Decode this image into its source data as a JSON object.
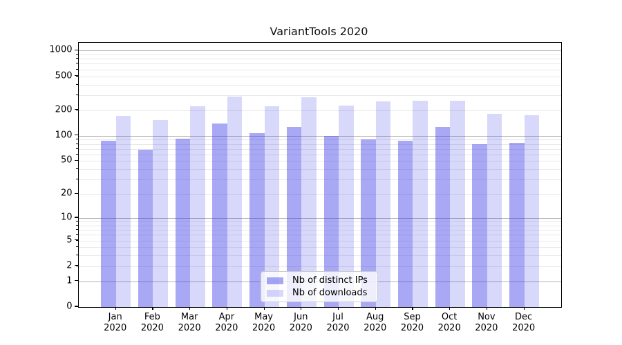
{
  "title": "VariantTools 2020",
  "colors": {
    "series_distinct_ips": "rgba(62,62,233,0.45)",
    "series_downloads": "rgba(62,62,233,0.20)",
    "grid_major": "#b0b0b0",
    "grid_minor": "#e8e8e8",
    "axis": "#000000",
    "legend_border": "#cccccc"
  },
  "legend": {
    "items": [
      {
        "label": "Nb of distinct IPs",
        "color": "rgba(62,62,233,0.45)"
      },
      {
        "label": "Nb of downloads",
        "color": "rgba(62,62,233,0.20)"
      }
    ]
  },
  "chart_data": {
    "type": "bar",
    "title": "VariantTools 2020",
    "categories": [
      "Jan",
      "Feb",
      "Mar",
      "Apr",
      "May",
      "Jun",
      "Jul",
      "Aug",
      "Sep",
      "Oct",
      "Nov",
      "Dec"
    ],
    "category_year": "2020",
    "series": [
      {
        "name": "Nb of distinct IPs",
        "values": [
          87,
          68,
          93,
          139,
          108,
          126,
          100,
          91,
          88,
          128,
          80,
          83
        ]
      },
      {
        "name": "Nb of downloads",
        "values": [
          170,
          152,
          224,
          287,
          224,
          283,
          226,
          255,
          260,
          260,
          180,
          176
        ]
      }
    ],
    "xlabel": "",
    "ylabel": "",
    "yscale": "symlog",
    "yticks": [
      0,
      1,
      2,
      5,
      10,
      20,
      50,
      100,
      200,
      500,
      1000
    ],
    "ylim": [
      0,
      1240
    ],
    "grid": "horizontal major+minor",
    "legend_position": "lower center"
  }
}
